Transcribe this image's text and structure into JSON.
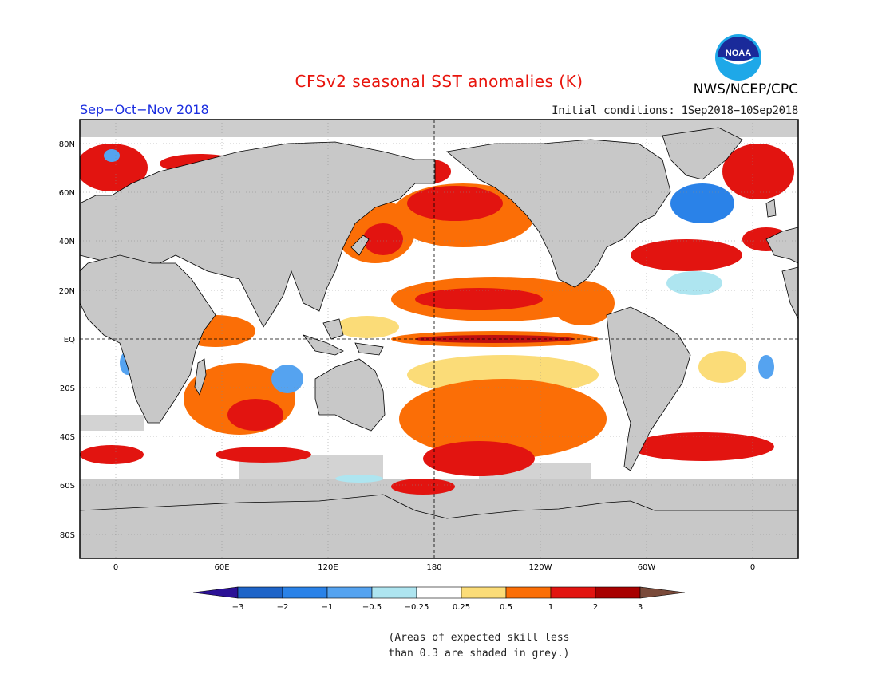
{
  "title": "CFSv2 seasonal SST anomalies (K)",
  "period": "Sep−Oct−Nov 2018",
  "initial_conditions": "Initial conditions: 1Sep2018−10Sep2018",
  "agency": "NWS/NCEP/CPC",
  "logo_text": "NOAA",
  "note_line1": "(Areas of expected skill less",
  "note_line2": "than 0.3 are shaded in grey.)",
  "axes": {
    "lat_labels": [
      "80N",
      "60N",
      "40N",
      "20N",
      "EQ",
      "20S",
      "40S",
      "60S",
      "80S"
    ],
    "lon_labels": [
      "0",
      "60E",
      "120E",
      "180",
      "120W",
      "60W",
      "0"
    ]
  },
  "colorbar": {
    "labels": [
      "−3",
      "−2",
      "−1",
      "−0.5",
      "−0.25",
      "0.25",
      "0.5",
      "1",
      "2",
      "3"
    ],
    "colors": [
      "#2b1196",
      "#1e64c8",
      "#2a82e8",
      "#55a3f0",
      "#aee5f0",
      "#ffffff",
      "#fbdc78",
      "#fb6e06",
      "#e21410",
      "#a80000",
      "#7a4a3a"
    ]
  },
  "colors": {
    "title": "#e8140c",
    "period": "#1b2ee0",
    "land": "#c8c8c8",
    "no_skill_grey": "#c8c8c8",
    "ocean_neutral": "#ffffff"
  }
}
